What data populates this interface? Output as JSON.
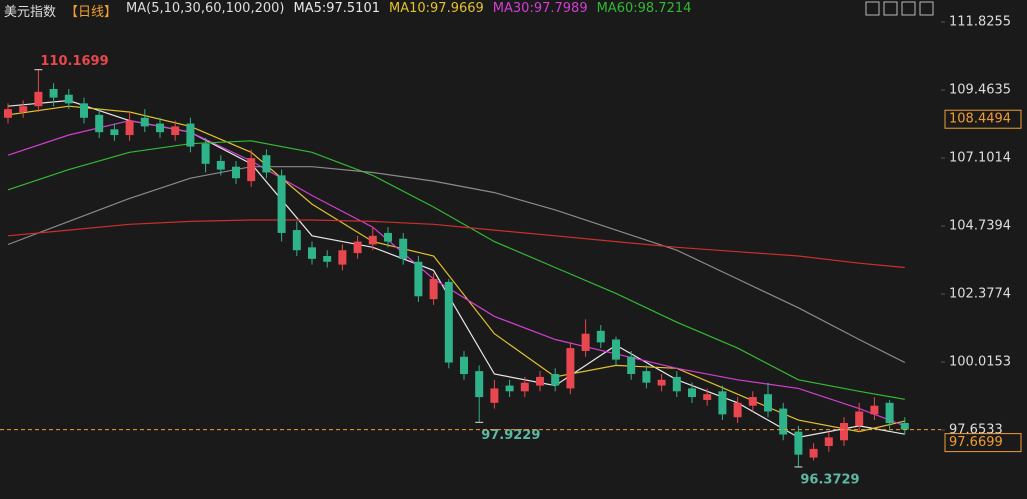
{
  "chart_data": {
    "type": "candlestick",
    "title": "美元指数",
    "period": "【日线】",
    "indicator": "MA(5,10,30,60,100,200)",
    "ylim": [
      95.26,
      112.59
    ],
    "yticks": [
      111.8255,
      109.4635,
      107.1014,
      104.7394,
      102.3774,
      100.0153,
      97.6533
    ],
    "up_color": "#e8474f",
    "down_color": "#2fb38a",
    "open": [
      108.5,
      108.7,
      108.9,
      109.5,
      109.3,
      109.0,
      108.6,
      108.1,
      107.9,
      108.5,
      108.3,
      107.9,
      108.3,
      107.6,
      107.0,
      106.8,
      106.3,
      107.2,
      106.5,
      104.6,
      104.0,
      103.7,
      103.4,
      103.8,
      104.1,
      104.5,
      104.3,
      103.5,
      102.2,
      102.8,
      100.2,
      99.7,
      98.6,
      99.2,
      99.0,
      99.2,
      99.6,
      99.1,
      100.4,
      101.1,
      100.8,
      100.2,
      99.7,
      99.2,
      99.5,
      99.1,
      98.7,
      99.0,
      98.1,
      98.5,
      98.9,
      98.4,
      97.6,
      96.7,
      97.1,
      97.3,
      97.8,
      98.2,
      98.6,
      97.9
    ],
    "high": [
      109.0,
      109.1,
      110.1699,
      109.7,
      109.5,
      109.2,
      108.8,
      108.3,
      108.7,
      108.8,
      108.5,
      108.4,
      108.5,
      107.8,
      107.2,
      107.0,
      107.4,
      107.4,
      106.7,
      104.9,
      104.2,
      103.9,
      104.1,
      104.4,
      104.7,
      104.7,
      104.5,
      103.7,
      103.1,
      102.9,
      100.4,
      99.9,
      99.4,
      99.4,
      99.5,
      99.7,
      99.8,
      100.7,
      101.5,
      101.3,
      100.9,
      100.4,
      99.9,
      99.6,
      99.7,
      99.3,
      99.1,
      99.2,
      98.8,
      99.0,
      99.3,
      98.6,
      97.8,
      97.2,
      97.6,
      98.1,
      98.6,
      98.8,
      98.7,
      98.1
    ],
    "low": [
      108.3,
      108.5,
      108.7,
      108.9,
      108.8,
      108.3,
      107.8,
      107.7,
      107.7,
      108.0,
      107.8,
      107.7,
      107.3,
      106.6,
      106.5,
      106.2,
      106.1,
      106.4,
      104.2,
      103.7,
      103.4,
      103.3,
      103.2,
      103.6,
      103.9,
      104.0,
      103.4,
      102.1,
      102.0,
      99.8,
      99.4,
      97.9229,
      98.4,
      98.8,
      98.8,
      99.0,
      99.0,
      98.9,
      100.2,
      100.5,
      99.9,
      99.4,
      99.1,
      99.0,
      98.8,
      98.6,
      98.5,
      98.0,
      97.9,
      98.3,
      98.1,
      97.3,
      96.3729,
      96.6,
      96.9,
      97.1,
      97.6,
      98.0,
      97.7,
      97.5
    ],
    "close": [
      108.8,
      108.9,
      109.4,
      109.2,
      109.0,
      108.5,
      108.0,
      107.9,
      108.4,
      108.2,
      108.0,
      108.2,
      107.5,
      106.9,
      106.7,
      106.4,
      107.1,
      106.6,
      104.5,
      103.9,
      103.6,
      103.5,
      103.9,
      104.2,
      104.4,
      104.2,
      103.6,
      102.3,
      102.9,
      100.0,
      99.6,
      98.8,
      99.1,
      99.0,
      99.3,
      99.5,
      99.2,
      100.5,
      101.0,
      100.7,
      100.1,
      99.6,
      99.3,
      99.4,
      99.0,
      98.8,
      98.9,
      98.2,
      98.6,
      98.8,
      98.3,
      97.5,
      96.8,
      97.0,
      97.4,
      97.9,
      98.3,
      98.5,
      97.9,
      97.6699
    ],
    "series": [
      {
        "name": "MA5:97.5101",
        "color": "#e8e8e8",
        "x": [
          0,
          4,
          8,
          12,
          16,
          20,
          24,
          28,
          32,
          36,
          40,
          44,
          48,
          52,
          56,
          59
        ],
        "values": [
          108.9,
          109.1,
          108.4,
          108.0,
          106.9,
          104.4,
          104.0,
          103.2,
          99.6,
          99.2,
          100.6,
          99.4,
          98.6,
          97.4,
          97.8,
          97.5101
        ]
      },
      {
        "name": "MA10:97.9669",
        "color": "#e2c12a",
        "x": [
          0,
          4,
          8,
          12,
          16,
          20,
          24,
          28,
          32,
          36,
          40,
          44,
          48,
          52,
          56,
          59
        ],
        "values": [
          108.6,
          108.9,
          108.7,
          108.2,
          107.3,
          105.5,
          104.2,
          103.7,
          101.0,
          99.5,
          99.9,
          99.8,
          98.9,
          98.0,
          97.6,
          97.9669
        ]
      },
      {
        "name": "MA30:97.7989",
        "color": "#d23fd2",
        "x": [
          0,
          4,
          8,
          12,
          16,
          20,
          24,
          28,
          32,
          36,
          40,
          44,
          48,
          52,
          56,
          59
        ],
        "values": [
          107.2,
          107.9,
          108.4,
          108.0,
          107.0,
          105.8,
          104.7,
          102.9,
          101.6,
          100.8,
          100.3,
          99.8,
          99.4,
          99.1,
          98.4,
          97.7989
        ]
      },
      {
        "name": "MA60:98.7214",
        "color": "#33b833",
        "x": [
          0,
          4,
          8,
          12,
          16,
          20,
          24,
          28,
          32,
          36,
          40,
          44,
          48,
          52,
          56,
          59
        ],
        "values": [
          106.0,
          106.7,
          107.3,
          107.6,
          107.7,
          107.3,
          106.5,
          105.4,
          104.2,
          103.3,
          102.4,
          101.4,
          100.5,
          99.4,
          99.0,
          98.7214
        ]
      },
      {
        "color": "#8a8a8a",
        "x": [
          0,
          4,
          8,
          12,
          16,
          20,
          24,
          28,
          32,
          36,
          40,
          44,
          48,
          52,
          56,
          59
        ],
        "values": [
          104.1,
          104.9,
          105.7,
          106.4,
          106.8,
          106.8,
          106.6,
          106.3,
          105.9,
          105.3,
          104.6,
          103.9,
          102.9,
          101.9,
          100.8,
          100.0
        ]
      },
      {
        "color": "#cc2f2f",
        "x": [
          0,
          4,
          8,
          12,
          16,
          20,
          24,
          28,
          32,
          36,
          40,
          44,
          48,
          52,
          56,
          59
        ],
        "values": [
          104.4,
          104.6,
          104.8,
          104.9,
          104.95,
          104.95,
          104.9,
          104.8,
          104.6,
          104.4,
          104.2,
          104.0,
          103.85,
          103.7,
          103.45,
          103.3
        ]
      }
    ],
    "annotations": [
      {
        "x": 2,
        "value": 110.1699,
        "color": "#e8474f"
      },
      {
        "x": 31,
        "value": 97.9229,
        "color": "#5fb8a4"
      },
      {
        "x": 52,
        "value": 96.3729,
        "color": "#5fb8a4"
      }
    ],
    "highlight_price": 108.4494,
    "last_price": 97.6699,
    "last_price_color": "#f39c32"
  }
}
